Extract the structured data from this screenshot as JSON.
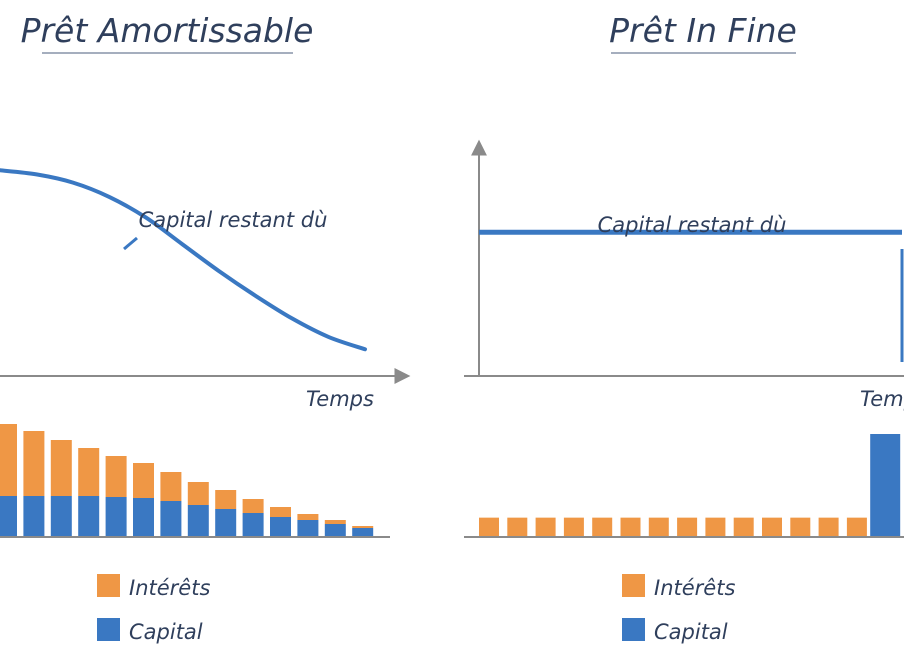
{
  "colors": {
    "curve": "#3a78c2",
    "interest": "#ef9745",
    "capital": "#3a78c2",
    "axis": "#8a8a8a",
    "text": "#2f3f5c",
    "underline": "#8794a8"
  },
  "chart_data": [
    {
      "type": "line",
      "title": "Prêt Amortissable",
      "xlabel": "Temps",
      "ylabel": "",
      "annotation": "Capital restant dù",
      "series": [
        {
          "name": "Capital restant dù",
          "x": [
            0,
            1,
            2,
            3,
            4,
            5,
            6,
            7,
            8,
            9,
            10
          ],
          "values": [
            100,
            98,
            94,
            87,
            77,
            64,
            51,
            39,
            28,
            19,
            13
          ]
        }
      ],
      "ylim": [
        0,
        105
      ],
      "grid": false,
      "legend": "none"
    },
    {
      "type": "bar",
      "stacked": true,
      "title": "",
      "xlabel": "",
      "ylabel": "",
      "categories": [
        "1",
        "2",
        "3",
        "4",
        "5",
        "6",
        "7",
        "8",
        "9",
        "10",
        "11",
        "12",
        "13",
        "14"
      ],
      "series": [
        {
          "name": "Intérêts",
          "values": [
            72,
            65,
            56,
            48,
            41,
            35,
            29,
            23,
            19,
            14,
            10,
            6,
            4,
            2
          ]
        },
        {
          "name": "Capital",
          "values": [
            40,
            40,
            40,
            40,
            39,
            38,
            35,
            31,
            27,
            23,
            19,
            16,
            12,
            8
          ]
        }
      ],
      "legend": "bottom",
      "grid": false
    },
    {
      "type": "line",
      "title": "Prêt In Fine",
      "xlabel": "Temp",
      "ylabel": "",
      "annotation": "Capital restant dù",
      "series": [
        {
          "name": "Capital restant dù",
          "x": [
            0,
            1,
            2,
            3,
            4,
            5,
            6,
            7,
            8,
            9,
            10,
            11,
            12,
            13,
            14
          ],
          "values": [
            100,
            100,
            100,
            100,
            100,
            100,
            100,
            100,
            100,
            100,
            100,
            100,
            100,
            100,
            100
          ]
        }
      ],
      "ylim": [
        0,
        160
      ],
      "grid": false,
      "legend": "none"
    },
    {
      "type": "bar",
      "stacked": true,
      "title": "",
      "xlabel": "",
      "ylabel": "",
      "categories": [
        "1",
        "2",
        "3",
        "4",
        "5",
        "6",
        "7",
        "8",
        "9",
        "10",
        "11",
        "12",
        "13",
        "14",
        "15"
      ],
      "series": [
        {
          "name": "Intérêts",
          "values": [
            18,
            18,
            18,
            18,
            18,
            18,
            18,
            18,
            18,
            18,
            18,
            18,
            18,
            18,
            0
          ]
        },
        {
          "name": "Capital",
          "values": [
            0,
            0,
            0,
            0,
            0,
            0,
            0,
            0,
            0,
            0,
            0,
            0,
            0,
            0,
            100
          ]
        }
      ],
      "legend": "bottom",
      "grid": false
    }
  ],
  "legend_labels": {
    "interest": "Intérêts",
    "capital": "Capital"
  }
}
